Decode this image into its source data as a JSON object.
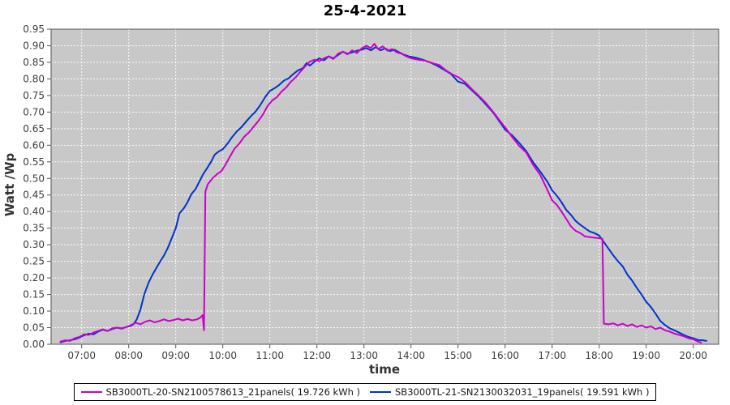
{
  "chart_data": {
    "type": "line",
    "title": "25-4-2021",
    "xlabel": "time",
    "ylabel": "Watt /Wp",
    "grid": true,
    "legend_position": "bottom",
    "plot_bg": "#c8c8c8",
    "ylim": [
      0.0,
      0.95
    ],
    "y_tick_labels": [
      "0.00",
      "0.05",
      "0.10",
      "0.15",
      "0.20",
      "0.25",
      "0.30",
      "0.35",
      "0.40",
      "0.45",
      "0.50",
      "0.55",
      "0.60",
      "0.65",
      "0.70",
      "0.75",
      "0.80",
      "0.85",
      "0.90",
      "0.95"
    ],
    "x_ticks": [
      "07:00",
      "08:00",
      "09:00",
      "10:00",
      "11:00",
      "12:00",
      "13:00",
      "14:00",
      "15:00",
      "16:00",
      "17:00",
      "18:00",
      "19:00",
      "20:00"
    ],
    "x_range_hours": [
      6.35,
      20.54
    ],
    "series": [
      {
        "name": "SB3000TL-20-SN2100578613_21panels( 19.726 kWh )",
        "energy_kwh": "19.726",
        "color": "#cc00cc",
        "points": [
          [
            6.55,
            0.008
          ],
          [
            6.65,
            0.012
          ],
          [
            6.75,
            0.01
          ],
          [
            6.85,
            0.018
          ],
          [
            6.95,
            0.022
          ],
          [
            7.05,
            0.03
          ],
          [
            7.15,
            0.028
          ],
          [
            7.25,
            0.035
          ],
          [
            7.35,
            0.04
          ],
          [
            7.45,
            0.045
          ],
          [
            7.55,
            0.04
          ],
          [
            7.65,
            0.048
          ],
          [
            7.75,
            0.05
          ],
          [
            7.85,
            0.048
          ],
          [
            7.95,
            0.052
          ],
          [
            8.05,
            0.058
          ],
          [
            8.15,
            0.065
          ],
          [
            8.25,
            0.06
          ],
          [
            8.35,
            0.068
          ],
          [
            8.45,
            0.072
          ],
          [
            8.55,
            0.066
          ],
          [
            8.65,
            0.07
          ],
          [
            8.75,
            0.075
          ],
          [
            8.85,
            0.07
          ],
          [
            8.95,
            0.073
          ],
          [
            9.05,
            0.077
          ],
          [
            9.15,
            0.072
          ],
          [
            9.25,
            0.076
          ],
          [
            9.35,
            0.072
          ],
          [
            9.45,
            0.075
          ],
          [
            9.52,
            0.08
          ],
          [
            9.57,
            0.088
          ],
          [
            9.6,
            0.042
          ],
          [
            9.63,
            0.46
          ],
          [
            9.68,
            0.482
          ],
          [
            9.78,
            0.5
          ],
          [
            9.88,
            0.513
          ],
          [
            9.97,
            0.522
          ],
          [
            10.05,
            0.54
          ],
          [
            10.15,
            0.565
          ],
          [
            10.25,
            0.59
          ],
          [
            10.35,
            0.605
          ],
          [
            10.45,
            0.625
          ],
          [
            10.55,
            0.638
          ],
          [
            10.65,
            0.655
          ],
          [
            10.75,
            0.672
          ],
          [
            10.85,
            0.692
          ],
          [
            10.95,
            0.718
          ],
          [
            11.05,
            0.735
          ],
          [
            11.15,
            0.745
          ],
          [
            11.25,
            0.762
          ],
          [
            11.35,
            0.775
          ],
          [
            11.45,
            0.792
          ],
          [
            11.55,
            0.805
          ],
          [
            11.65,
            0.822
          ],
          [
            11.75,
            0.838
          ],
          [
            11.85,
            0.852
          ],
          [
            11.95,
            0.858
          ],
          [
            12.05,
            0.853
          ],
          [
            12.15,
            0.862
          ],
          [
            12.25,
            0.868
          ],
          [
            12.35,
            0.86
          ],
          [
            12.45,
            0.876
          ],
          [
            12.55,
            0.882
          ],
          [
            12.65,
            0.874
          ],
          [
            12.75,
            0.886
          ],
          [
            12.85,
            0.878
          ],
          [
            12.95,
            0.892
          ],
          [
            13.05,
            0.9
          ],
          [
            13.15,
            0.893
          ],
          [
            13.22,
            0.906
          ],
          [
            13.3,
            0.89
          ],
          [
            13.4,
            0.898
          ],
          [
            13.5,
            0.885
          ],
          [
            13.6,
            0.89
          ],
          [
            13.7,
            0.88
          ],
          [
            13.8,
            0.876
          ],
          [
            13.9,
            0.868
          ],
          [
            14.0,
            0.862
          ],
          [
            14.15,
            0.858
          ],
          [
            14.3,
            0.855
          ],
          [
            14.45,
            0.848
          ],
          [
            14.6,
            0.842
          ],
          [
            14.75,
            0.825
          ],
          [
            14.9,
            0.812
          ],
          [
            15.0,
            0.806
          ],
          [
            15.15,
            0.79
          ],
          [
            15.3,
            0.768
          ],
          [
            15.45,
            0.748
          ],
          [
            15.6,
            0.726
          ],
          [
            15.75,
            0.7
          ],
          [
            15.9,
            0.672
          ],
          [
            16.0,
            0.654
          ],
          [
            16.15,
            0.625
          ],
          [
            16.3,
            0.598
          ],
          [
            16.45,
            0.578
          ],
          [
            16.6,
            0.54
          ],
          [
            16.75,
            0.51
          ],
          [
            16.9,
            0.465
          ],
          [
            17.0,
            0.434
          ],
          [
            17.1,
            0.42
          ],
          [
            17.2,
            0.4
          ],
          [
            17.3,
            0.378
          ],
          [
            17.4,
            0.355
          ],
          [
            17.5,
            0.342
          ],
          [
            17.6,
            0.335
          ],
          [
            17.7,
            0.325
          ],
          [
            17.85,
            0.322
          ],
          [
            18.0,
            0.32
          ],
          [
            18.07,
            0.318
          ],
          [
            18.1,
            0.062
          ],
          [
            18.2,
            0.06
          ],
          [
            18.3,
            0.063
          ],
          [
            18.4,
            0.057
          ],
          [
            18.5,
            0.062
          ],
          [
            18.6,
            0.055
          ],
          [
            18.7,
            0.06
          ],
          [
            18.8,
            0.052
          ],
          [
            18.9,
            0.057
          ],
          [
            19.0,
            0.05
          ],
          [
            19.1,
            0.054
          ],
          [
            19.2,
            0.046
          ],
          [
            19.3,
            0.05
          ],
          [
            19.4,
            0.042
          ],
          [
            19.5,
            0.038
          ],
          [
            19.6,
            0.032
          ],
          [
            19.7,
            0.028
          ],
          [
            19.8,
            0.024
          ],
          [
            19.9,
            0.018
          ],
          [
            20.0,
            0.015
          ],
          [
            20.1,
            0.008
          ],
          [
            20.17,
            0.005
          ]
        ]
      },
      {
        "name": "SB3000TL-21-SN2130032031_19panels( 19.591 kWh )",
        "energy_kwh": "19.591",
        "color": "#0033cc",
        "points": [
          [
            6.55,
            0.006
          ],
          [
            6.65,
            0.01
          ],
          [
            6.75,
            0.012
          ],
          [
            6.85,
            0.015
          ],
          [
            6.95,
            0.02
          ],
          [
            7.05,
            0.027
          ],
          [
            7.15,
            0.032
          ],
          [
            7.25,
            0.03
          ],
          [
            7.35,
            0.038
          ],
          [
            7.45,
            0.044
          ],
          [
            7.55,
            0.04
          ],
          [
            7.65,
            0.046
          ],
          [
            7.75,
            0.05
          ],
          [
            7.85,
            0.047
          ],
          [
            7.95,
            0.052
          ],
          [
            8.05,
            0.056
          ],
          [
            8.1,
            0.06
          ],
          [
            8.17,
            0.075
          ],
          [
            8.25,
            0.105
          ],
          [
            8.33,
            0.15
          ],
          [
            8.42,
            0.185
          ],
          [
            8.5,
            0.208
          ],
          [
            8.58,
            0.228
          ],
          [
            8.67,
            0.25
          ],
          [
            8.75,
            0.268
          ],
          [
            8.83,
            0.29
          ],
          [
            8.92,
            0.322
          ],
          [
            9.0,
            0.35
          ],
          [
            9.08,
            0.395
          ],
          [
            9.17,
            0.41
          ],
          [
            9.25,
            0.428
          ],
          [
            9.33,
            0.452
          ],
          [
            9.42,
            0.468
          ],
          [
            9.5,
            0.49
          ],
          [
            9.58,
            0.512
          ],
          [
            9.67,
            0.532
          ],
          [
            9.75,
            0.55
          ],
          [
            9.83,
            0.572
          ],
          [
            9.92,
            0.582
          ],
          [
            10.0,
            0.588
          ],
          [
            10.1,
            0.605
          ],
          [
            10.2,
            0.625
          ],
          [
            10.3,
            0.642
          ],
          [
            10.4,
            0.655
          ],
          [
            10.5,
            0.672
          ],
          [
            10.6,
            0.688
          ],
          [
            10.7,
            0.702
          ],
          [
            10.8,
            0.722
          ],
          [
            10.9,
            0.745
          ],
          [
            11.0,
            0.764
          ],
          [
            11.1,
            0.772
          ],
          [
            11.2,
            0.782
          ],
          [
            11.3,
            0.795
          ],
          [
            11.4,
            0.802
          ],
          [
            11.5,
            0.815
          ],
          [
            11.6,
            0.826
          ],
          [
            11.7,
            0.832
          ],
          [
            11.78,
            0.848
          ],
          [
            11.85,
            0.84
          ],
          [
            11.95,
            0.852
          ],
          [
            12.05,
            0.862
          ],
          [
            12.15,
            0.856
          ],
          [
            12.25,
            0.868
          ],
          [
            12.35,
            0.862
          ],
          [
            12.45,
            0.872
          ],
          [
            12.55,
            0.882
          ],
          [
            12.65,
            0.876
          ],
          [
            12.75,
            0.88
          ],
          [
            12.85,
            0.885
          ],
          [
            12.95,
            0.888
          ],
          [
            13.05,
            0.893
          ],
          [
            13.15,
            0.886
          ],
          [
            13.25,
            0.896
          ],
          [
            13.35,
            0.886
          ],
          [
            13.45,
            0.892
          ],
          [
            13.55,
            0.884
          ],
          [
            13.65,
            0.888
          ],
          [
            13.75,
            0.88
          ],
          [
            13.85,
            0.873
          ],
          [
            13.95,
            0.868
          ],
          [
            14.1,
            0.864
          ],
          [
            14.25,
            0.858
          ],
          [
            14.4,
            0.85
          ],
          [
            14.55,
            0.84
          ],
          [
            14.7,
            0.828
          ],
          [
            14.85,
            0.815
          ],
          [
            15.0,
            0.792
          ],
          [
            15.15,
            0.785
          ],
          [
            15.3,
            0.765
          ],
          [
            15.45,
            0.745
          ],
          [
            15.6,
            0.722
          ],
          [
            15.75,
            0.698
          ],
          [
            15.9,
            0.668
          ],
          [
            16.0,
            0.647
          ],
          [
            16.15,
            0.63
          ],
          [
            16.3,
            0.607
          ],
          [
            16.45,
            0.582
          ],
          [
            16.6,
            0.548
          ],
          [
            16.75,
            0.52
          ],
          [
            16.9,
            0.49
          ],
          [
            17.0,
            0.464
          ],
          [
            17.1,
            0.448
          ],
          [
            17.2,
            0.428
          ],
          [
            17.3,
            0.405
          ],
          [
            17.4,
            0.39
          ],
          [
            17.5,
            0.372
          ],
          [
            17.6,
            0.36
          ],
          [
            17.7,
            0.35
          ],
          [
            17.8,
            0.34
          ],
          [
            17.9,
            0.335
          ],
          [
            18.0,
            0.328
          ],
          [
            18.1,
            0.308
          ],
          [
            18.2,
            0.288
          ],
          [
            18.3,
            0.268
          ],
          [
            18.4,
            0.25
          ],
          [
            18.5,
            0.235
          ],
          [
            18.6,
            0.21
          ],
          [
            18.7,
            0.192
          ],
          [
            18.8,
            0.17
          ],
          [
            18.9,
            0.15
          ],
          [
            19.0,
            0.128
          ],
          [
            19.1,
            0.112
          ],
          [
            19.2,
            0.092
          ],
          [
            19.3,
            0.07
          ],
          [
            19.4,
            0.058
          ],
          [
            19.5,
            0.048
          ],
          [
            19.6,
            0.042
          ],
          [
            19.7,
            0.035
          ],
          [
            19.8,
            0.028
          ],
          [
            19.9,
            0.022
          ],
          [
            20.0,
            0.018
          ],
          [
            20.1,
            0.013
          ],
          [
            20.2,
            0.012
          ],
          [
            20.28,
            0.01
          ]
        ]
      }
    ]
  }
}
